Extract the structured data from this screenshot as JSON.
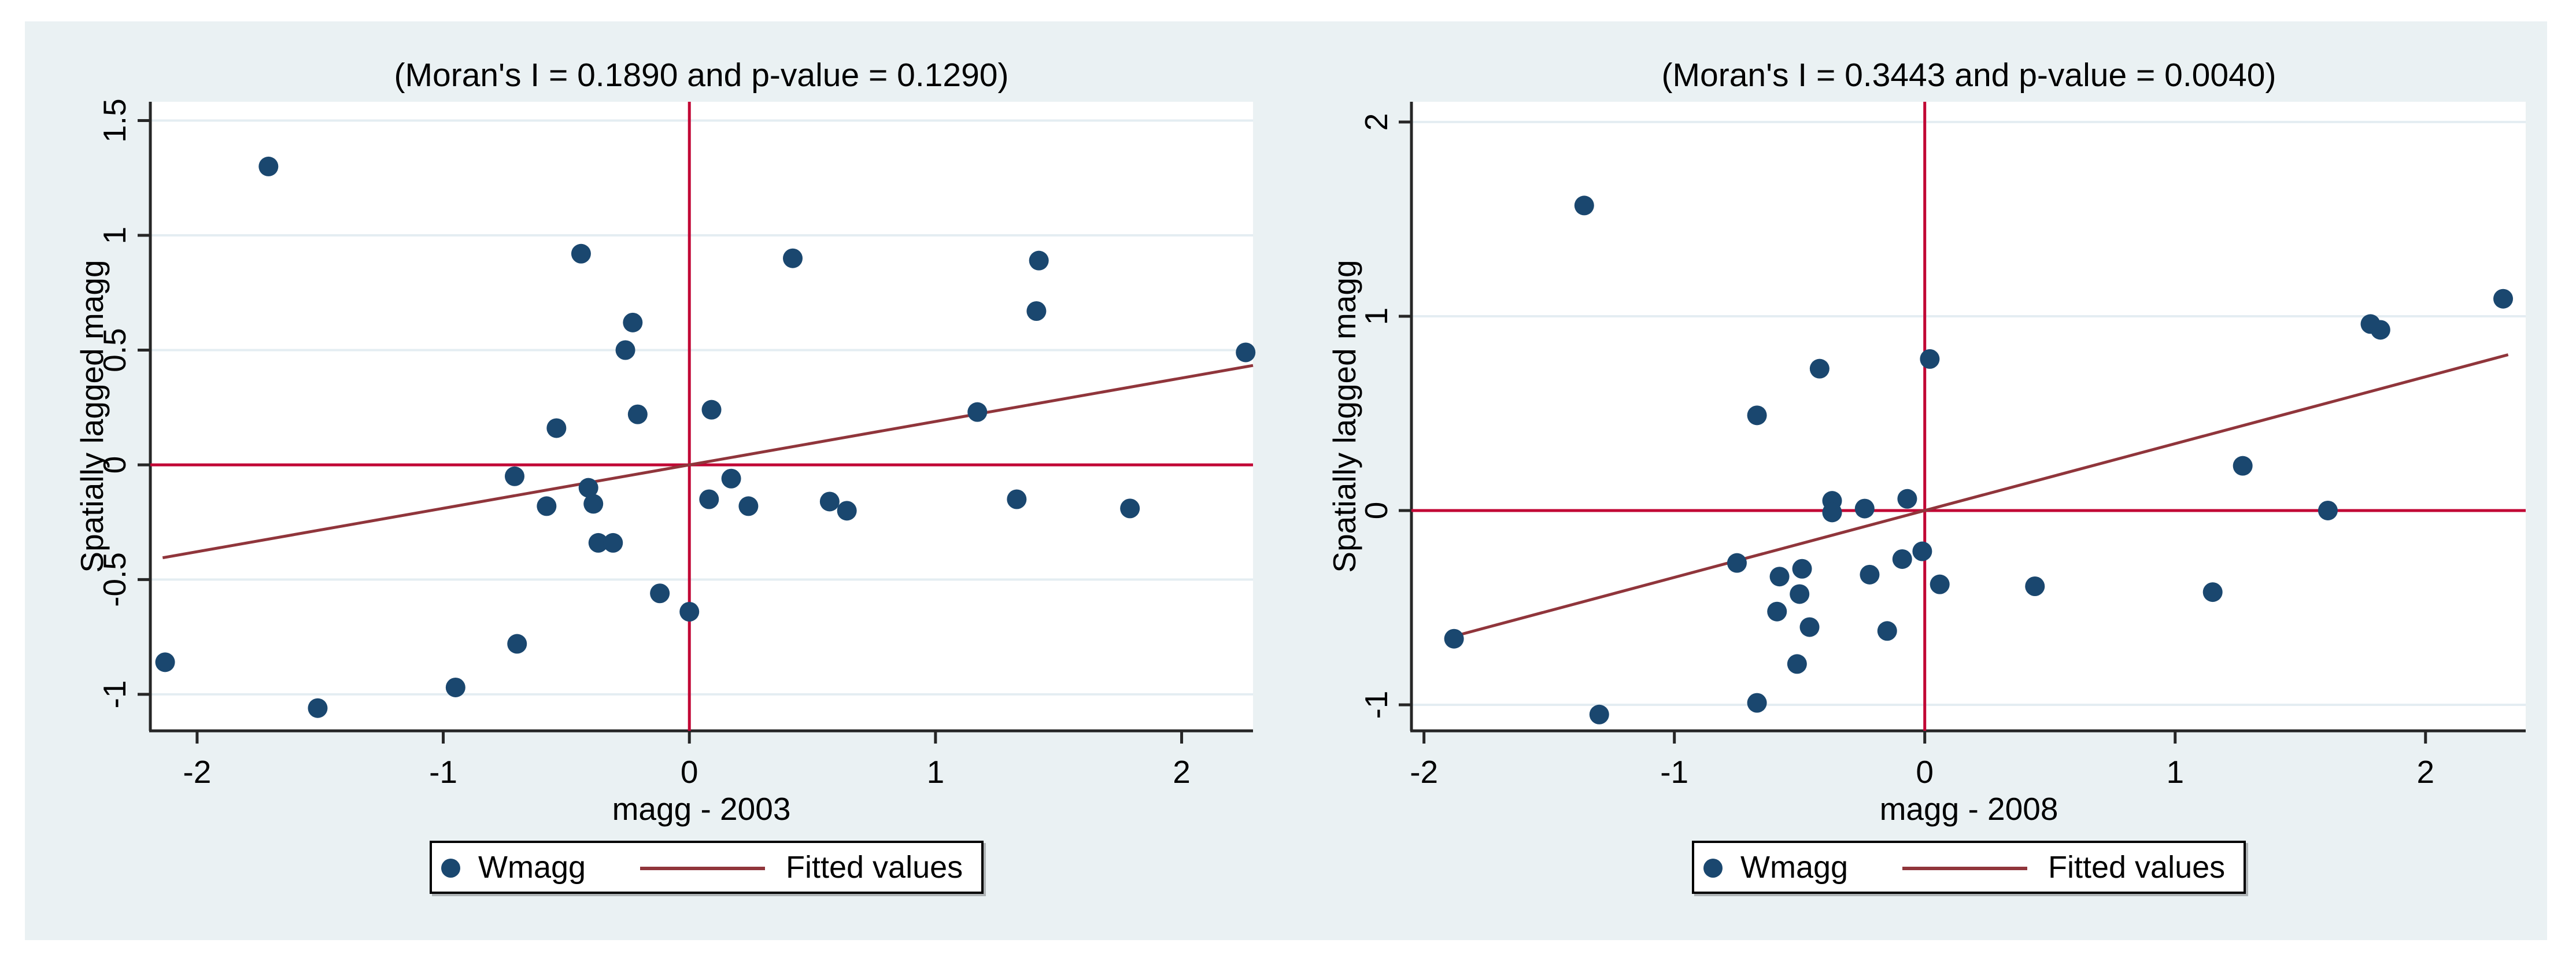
{
  "page": {
    "background": "#FFFFFF"
  },
  "figure": {
    "background": "#EAF1F3"
  },
  "style": {
    "dot_color": "#1A476F",
    "fitted_line_color": "#90353B",
    "reference_line_color": "#C10534",
    "grid_color": "#E4EDF2",
    "axis_color": "#262626",
    "plot_background": "#FFFFFF",
    "text_color": "#000000",
    "legend_background": "#FFFFFF",
    "legend_border": "#000000"
  },
  "chart_data": [
    {
      "type": "scatter",
      "title": "(Moran's I = 0.1890 and p-value = 0.1290)",
      "moran_i": "0.1890",
      "p_value": "0.1290",
      "xlabel": "magg - 2003",
      "ylabel": "Spatially lagged magg",
      "xlim": [
        -2.19,
        2.29
      ],
      "ylim": [
        -1.159,
        1.582
      ],
      "x_ticks": {
        "values": [
          -2,
          -1,
          0,
          1,
          2
        ],
        "labels": [
          "-2",
          "-1",
          "0",
          "1",
          "2"
        ]
      },
      "y_ticks": {
        "values": [
          1.5,
          1,
          0.5,
          0,
          -0.5,
          -1
        ],
        "labels": [
          "1.5",
          "1",
          "0.5",
          "0",
          "-0.5",
          "-1"
        ]
      },
      "reference_lines": {
        "x": 0,
        "y": 0
      },
      "fitted_line": {
        "x1": -2.14,
        "y1": -0.405,
        "x2": 2.29,
        "y2": 0.433,
        "slope": 0.189
      },
      "grid": "horizontal-only",
      "legend": {
        "marker_label": "Wmagg",
        "line_label": "Fitted values",
        "position": "bottom-center"
      },
      "series": [
        {
          "name": "Wmagg",
          "points": [
            [
              -2.13,
              -0.86
            ],
            [
              -1.71,
              1.3
            ],
            [
              -1.51,
              -1.06
            ],
            [
              -0.95,
              -0.97
            ],
            [
              -0.71,
              -0.05
            ],
            [
              -0.7,
              -0.78
            ],
            [
              -0.58,
              -0.18
            ],
            [
              -0.54,
              0.16
            ],
            [
              -0.44,
              0.92
            ],
            [
              -0.41,
              -0.1
            ],
            [
              -0.39,
              -0.17
            ],
            [
              -0.37,
              -0.34
            ],
            [
              -0.31,
              -0.34
            ],
            [
              -0.26,
              0.5
            ],
            [
              -0.23,
              0.62
            ],
            [
              -0.21,
              0.22
            ],
            [
              -0.12,
              -0.56
            ],
            [
              0.0,
              -0.64
            ],
            [
              0.08,
              -0.15
            ],
            [
              0.09,
              0.24
            ],
            [
              0.17,
              -0.06
            ],
            [
              0.24,
              -0.18
            ],
            [
              0.42,
              0.9
            ],
            [
              0.57,
              -0.16
            ],
            [
              0.64,
              -0.2
            ],
            [
              1.17,
              0.23
            ],
            [
              1.33,
              -0.15
            ],
            [
              1.41,
              0.67
            ],
            [
              1.42,
              0.89
            ],
            [
              1.79,
              -0.19
            ],
            [
              2.26,
              0.49
            ]
          ]
        }
      ]
    },
    {
      "type": "scatter",
      "title": "(Moran's I = 0.3443 and p-value = 0.0040)",
      "moran_i": "0.3443",
      "p_value": "0.0040",
      "xlabel": "magg - 2008",
      "ylabel": "Spatially lagged magg",
      "xlim": [
        -2.05,
        2.4
      ],
      "ylim": [
        -1.134,
        2.104
      ],
      "x_ticks": {
        "values": [
          -2,
          -1,
          0,
          1,
          2
        ],
        "labels": [
          "-2",
          "-1",
          "0",
          "1",
          "2"
        ]
      },
      "y_ticks": {
        "values": [
          2,
          1,
          0,
          -1
        ],
        "labels": [
          "2",
          "1",
          "0",
          "-1"
        ]
      },
      "reference_lines": {
        "x": 0,
        "y": 0
      },
      "fitted_line": {
        "x1": -1.88,
        "y1": -0.647,
        "x2": 2.33,
        "y2": 0.802,
        "slope": 0.3443
      },
      "grid": "horizontal-only",
      "legend": {
        "marker_label": "Wmagg",
        "line_label": "Fitted values",
        "position": "bottom-center"
      },
      "series": [
        {
          "name": "Wmagg",
          "points": [
            [
              -1.88,
              -0.66
            ],
            [
              -1.36,
              1.57
            ],
            [
              -1.3,
              -1.05
            ],
            [
              -0.75,
              -0.27
            ],
            [
              -0.67,
              0.49
            ],
            [
              -0.67,
              -0.99
            ],
            [
              -0.59,
              -0.52
            ],
            [
              -0.58,
              -0.34
            ],
            [
              -0.51,
              -0.79
            ],
            [
              -0.5,
              -0.43
            ],
            [
              -0.49,
              -0.3
            ],
            [
              -0.46,
              -0.6
            ],
            [
              -0.42,
              0.73
            ],
            [
              -0.37,
              0.05
            ],
            [
              -0.37,
              -0.01
            ],
            [
              -0.24,
              0.01
            ],
            [
              -0.22,
              -0.33
            ],
            [
              -0.15,
              -0.62
            ],
            [
              -0.09,
              -0.25
            ],
            [
              -0.07,
              0.06
            ],
            [
              -0.01,
              -0.21
            ],
            [
              0.02,
              0.78
            ],
            [
              0.06,
              -0.38
            ],
            [
              0.44,
              -0.39
            ],
            [
              1.15,
              -0.42
            ],
            [
              1.27,
              0.23
            ],
            [
              1.61,
              0.0
            ],
            [
              1.78,
              0.96
            ],
            [
              1.82,
              0.93
            ],
            [
              2.31,
              1.09
            ]
          ]
        }
      ]
    }
  ]
}
